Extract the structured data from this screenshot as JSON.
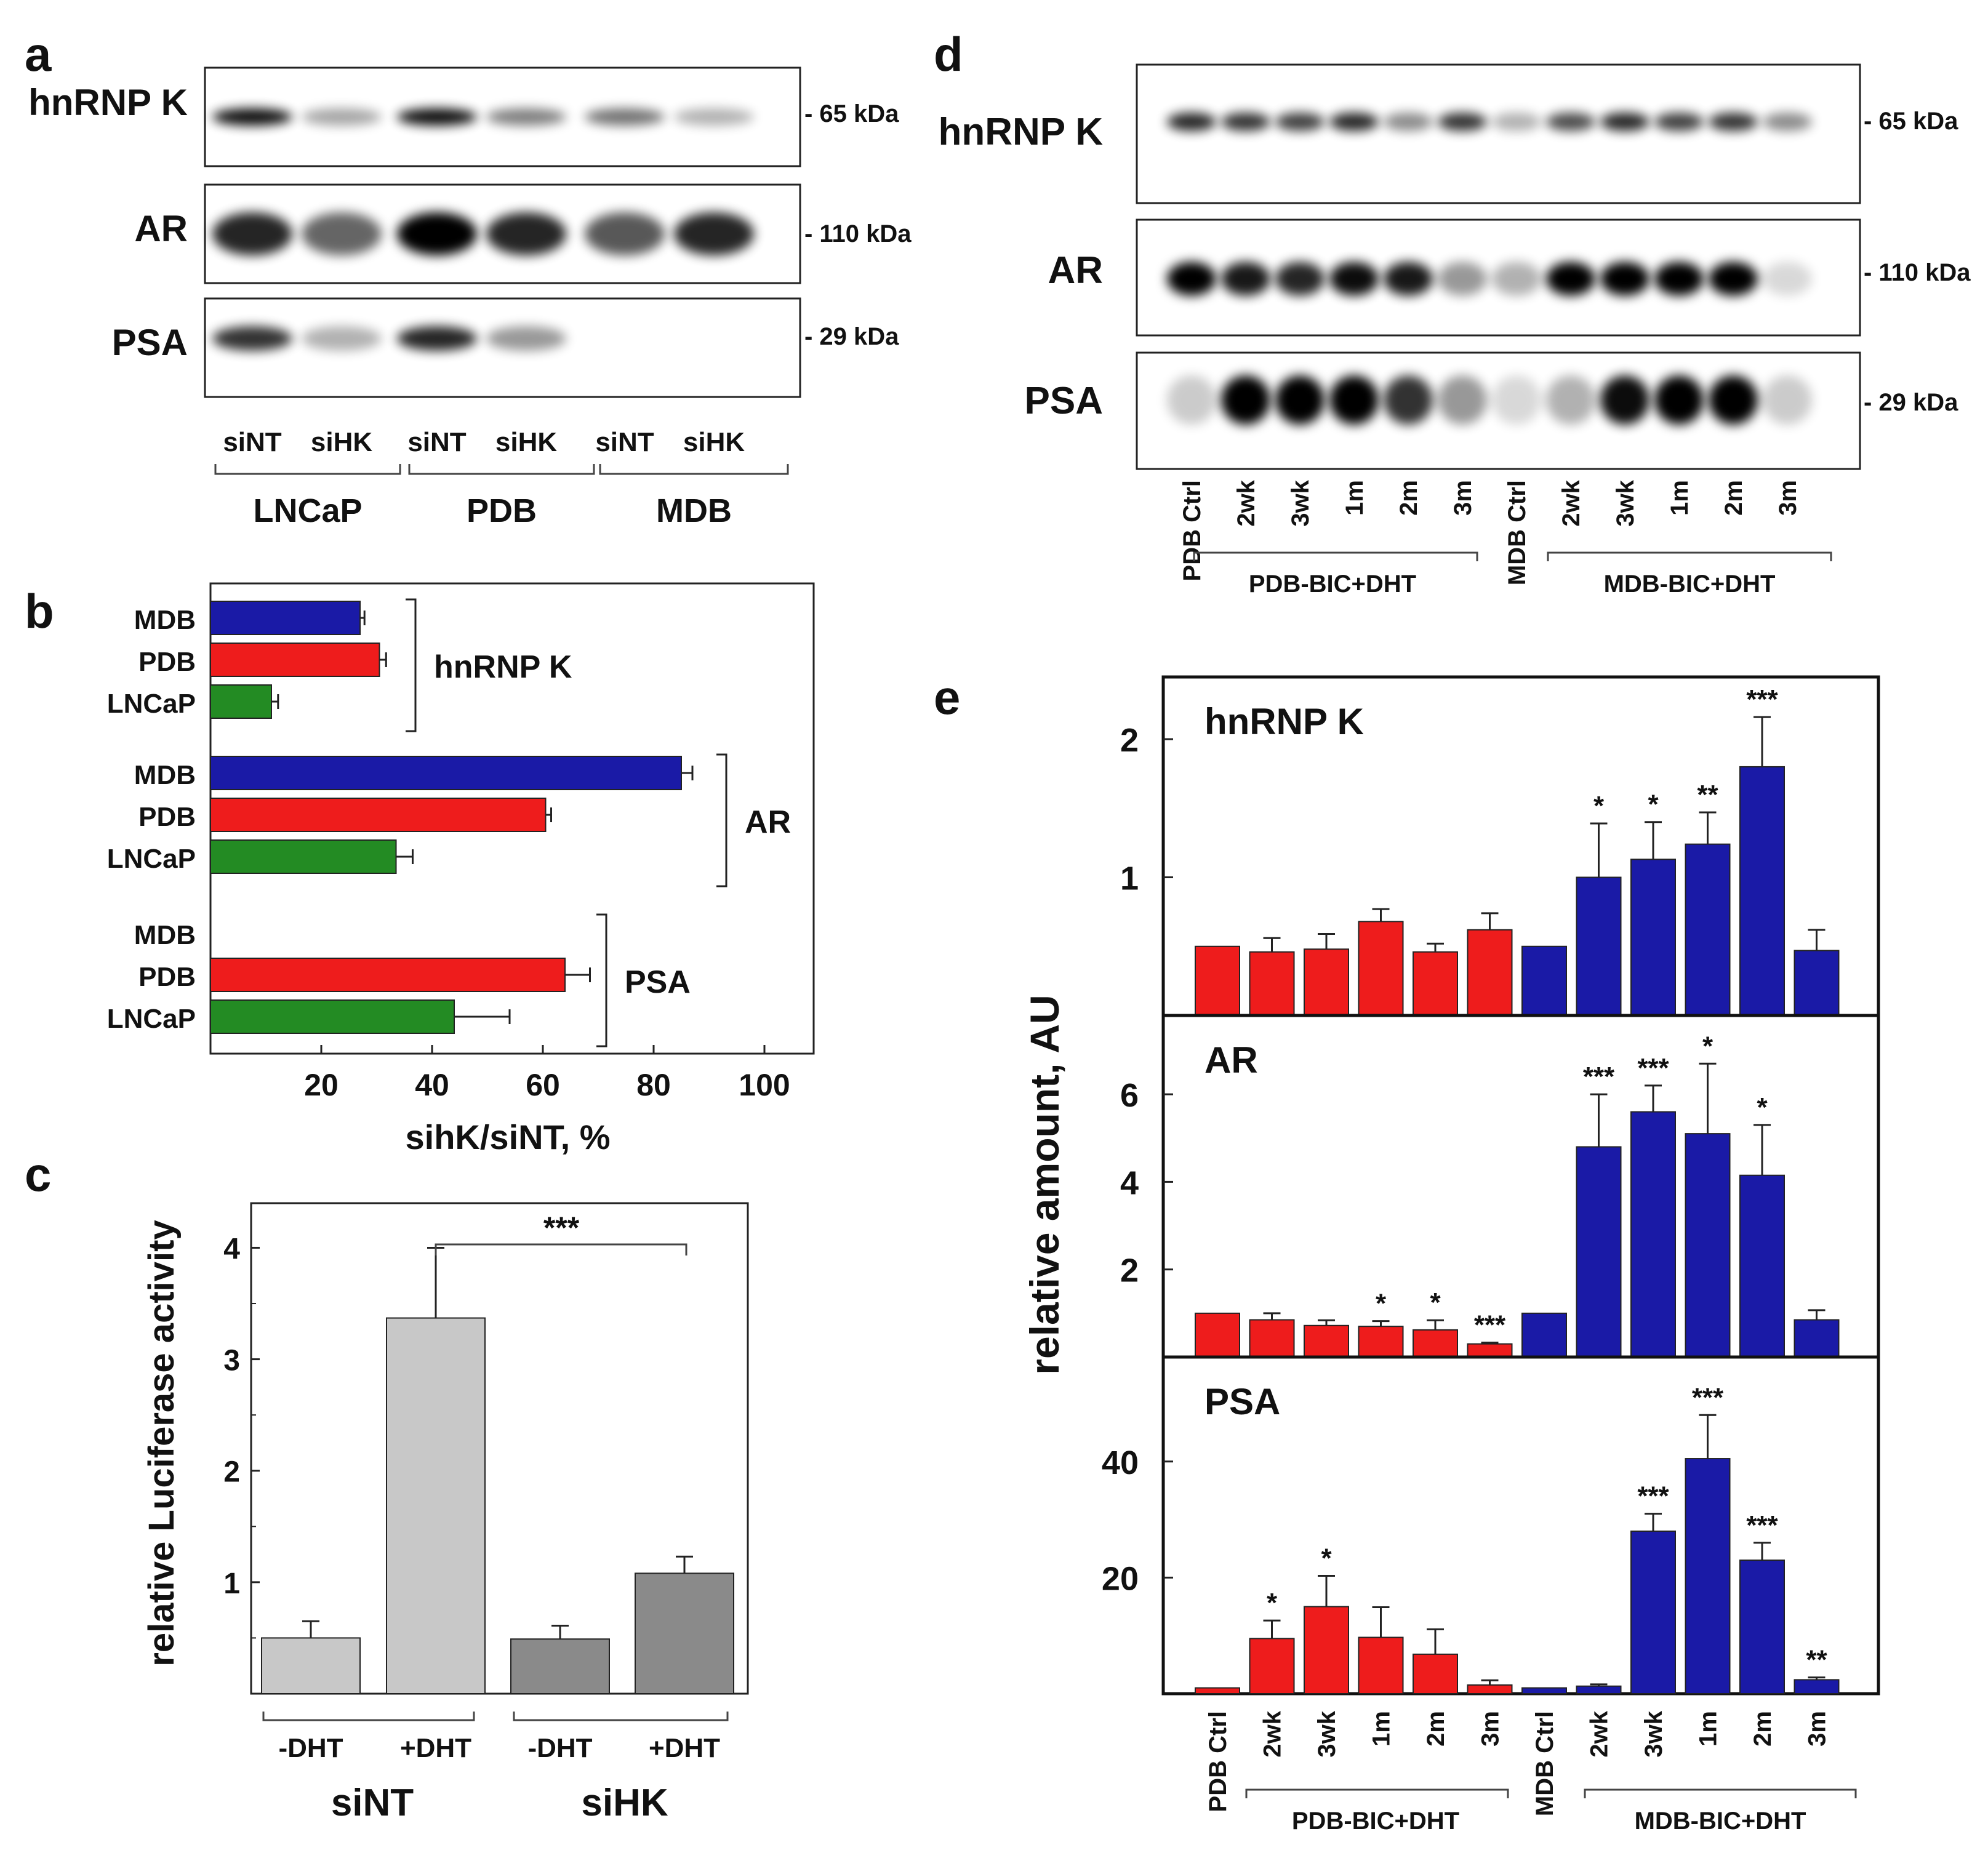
{
  "panels": {
    "a": {
      "letter": "a",
      "rows": [
        {
          "protein": "hnRNP K",
          "size": "- 65 kDa"
        },
        {
          "protein": "AR",
          "size": "- 110 kDa"
        },
        {
          "protein": "PSA",
          "size": "- 29 kDa"
        }
      ],
      "lanes": [
        "siNT",
        "siHK",
        "siNT",
        "siHK",
        "siNT",
        "siHK"
      ],
      "groups": [
        "LNCaP",
        "PDB",
        "MDB"
      ]
    },
    "d": {
      "letter": "d",
      "rows": [
        {
          "protein": "hnRNP K",
          "size": "- 65 kDa"
        },
        {
          "protein": "AR",
          "size": "- 110 kDa"
        },
        {
          "protein": "PSA",
          "size": "- 29 kDa"
        }
      ],
      "lanes": [
        "PDB Ctrl",
        "2wk",
        "3wk",
        "1m",
        "2m",
        "3m",
        "MDB Ctrl",
        "2wk",
        "3wk",
        "1m",
        "2m",
        "3m"
      ],
      "groups": [
        "PDB-BIC+DHT",
        "MDB-BIC+DHT"
      ]
    }
  },
  "chart_data": [
    {
      "panel": "b",
      "letter": "b",
      "type": "bar",
      "orientation": "horizontal",
      "xlabel": "sihK/siNT, %",
      "xlim": [
        0,
        110
      ],
      "xticks": [
        "20",
        "40",
        "60",
        "80",
        "100"
      ],
      "groups": [
        {
          "name": "hnRNP K",
          "bars": [
            {
              "label": "MDB",
              "value": 27,
              "err": 0.8,
              "color": "#1a1aa6"
            },
            {
              "label": "PDB",
              "value": 30.5,
              "err": 1.2,
              "color": "#ee1c1c"
            },
            {
              "label": "LNCaP",
              "value": 11,
              "err": 1.2,
              "color": "#238b23"
            }
          ]
        },
        {
          "name": "AR",
          "bars": [
            {
              "label": "MDB",
              "value": 85,
              "err": 2,
              "color": "#1a1aa6"
            },
            {
              "label": "PDB",
              "value": 60.5,
              "err": 1,
              "color": "#ee1c1c"
            },
            {
              "label": "LNCaP",
              "value": 33.5,
              "err": 3,
              "color": "#238b23"
            }
          ]
        },
        {
          "name": "PSA",
          "bars": [
            {
              "label": "MDB",
              "value": null,
              "err": null,
              "color": "#1a1aa6"
            },
            {
              "label": "PDB",
              "value": 64,
              "err": 4.5,
              "color": "#ee1c1c"
            },
            {
              "label": "LNCaP",
              "value": 44,
              "err": 10,
              "color": "#238b23"
            }
          ]
        }
      ]
    },
    {
      "panel": "c",
      "letter": "c",
      "type": "bar",
      "ylabel": "relative Luciferase activity",
      "ylim": [
        0,
        4.4
      ],
      "yticks": [
        "1",
        "2",
        "3",
        "4"
      ],
      "categories": [
        "-DHT",
        "+DHT",
        "-DHT",
        "+DHT"
      ],
      "groups": [
        "siNT",
        "siHK"
      ],
      "values": [
        0.5,
        3.37,
        0.49,
        1.08
      ],
      "errors": [
        0.15,
        0.63,
        0.12,
        0.15
      ],
      "colors": [
        "#c8c8c8",
        "#c8c8c8",
        "#8a8a8a",
        "#8a8a8a"
      ],
      "significance": "***"
    },
    {
      "panel": "e",
      "letter": "e",
      "type": "bar",
      "ylabel": "relative amount, AU",
      "categories": [
        "PDB Ctrl",
        "2wk",
        "3wk",
        "1m",
        "2m",
        "3m",
        "MDB Ctrl",
        "2wk",
        "3wk",
        "1m",
        "2m",
        "3m"
      ],
      "groups": [
        "PDB-BIC+DHT",
        "MDB-BIC+DHT"
      ],
      "colors": [
        "#ee1c1c",
        "#ee1c1c",
        "#ee1c1c",
        "#ee1c1c",
        "#ee1c1c",
        "#ee1c1c",
        "#1a1aa6",
        "#1a1aa6",
        "#1a1aa6",
        "#1a1aa6",
        "#1a1aa6",
        "#1a1aa6"
      ],
      "subplots": [
        {
          "title": "hnRNP K",
          "ylim": [
            0,
            2.45
          ],
          "yticks": [
            "1",
            "2"
          ],
          "values": [
            0.5,
            0.46,
            0.48,
            0.68,
            0.46,
            0.62,
            0.5,
            1.0,
            1.13,
            1.24,
            1.8,
            0.47
          ],
          "errors": [
            0,
            0.1,
            0.11,
            0.09,
            0.06,
            0.12,
            0,
            0.39,
            0.27,
            0.23,
            0.36,
            0.15
          ],
          "stars": [
            "",
            "",
            "",
            "",
            "",
            "",
            "",
            "*",
            "*",
            "**",
            "***",
            ""
          ]
        },
        {
          "title": "AR",
          "ylim": [
            0,
            7.8
          ],
          "yticks": [
            "2",
            "4",
            "6"
          ],
          "values": [
            1.0,
            0.85,
            0.72,
            0.7,
            0.62,
            0.3,
            1.0,
            4.8,
            5.6,
            5.1,
            4.15,
            0.85
          ],
          "errors": [
            0,
            0.15,
            0.12,
            0.12,
            0.22,
            0.03,
            0,
            1.2,
            0.6,
            1.6,
            1.15,
            0.22
          ],
          "stars": [
            "",
            "",
            "",
            "*",
            "*",
            "***",
            "",
            "***",
            "***",
            "*",
            "*",
            ""
          ]
        },
        {
          "title": "PSA",
          "ylim": [
            0,
            58
          ],
          "yticks": [
            "20",
            "40"
          ],
          "values": [
            1,
            9.5,
            15,
            9.7,
            6.8,
            1.5,
            1,
            1.3,
            28,
            40.5,
            23,
            2.4
          ],
          "errors": [
            0,
            3.1,
            5.3,
            5.2,
            4.3,
            0.8,
            0,
            0.3,
            3,
            7.5,
            3,
            0.4
          ],
          "stars": [
            "",
            "*",
            "*",
            "",
            "",
            "",
            "",
            "",
            "***",
            "***",
            "***",
            "**"
          ]
        }
      ]
    }
  ]
}
